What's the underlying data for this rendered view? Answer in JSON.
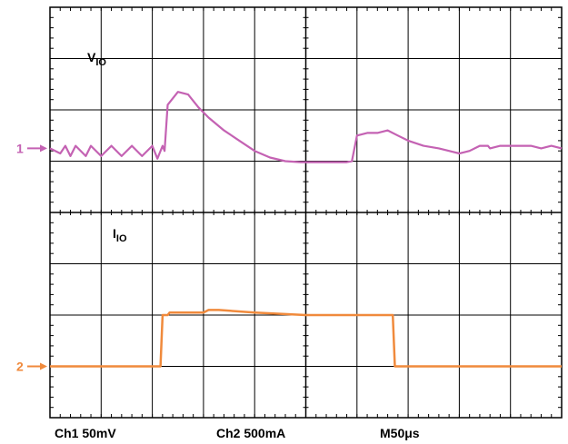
{
  "chart_data": {
    "type": "line",
    "grid": true,
    "divisions": {
      "x": 10,
      "y": 8
    },
    "x_range_us": [
      0,
      500
    ],
    "series": [
      {
        "name": "V",
        "name_sub": "IO",
        "channel_marker": "1",
        "color": "#c462b3",
        "ground_div": 5.25,
        "points": [
          [
            0,
            5.25
          ],
          [
            10,
            5.15
          ],
          [
            15,
            5.3
          ],
          [
            20,
            5.1
          ],
          [
            25,
            5.3
          ],
          [
            35,
            5.1
          ],
          [
            40,
            5.3
          ],
          [
            50,
            5.1
          ],
          [
            60,
            5.3
          ],
          [
            70,
            5.1
          ],
          [
            80,
            5.3
          ],
          [
            90,
            5.1
          ],
          [
            100,
            5.3
          ],
          [
            105,
            5.05
          ],
          [
            110,
            5.3
          ],
          [
            112,
            5.2
          ],
          [
            115,
            6.1
          ],
          [
            125,
            6.35
          ],
          [
            135,
            6.3
          ],
          [
            145,
            6.05
          ],
          [
            155,
            5.85
          ],
          [
            170,
            5.6
          ],
          [
            185,
            5.4
          ],
          [
            200,
            5.2
          ],
          [
            215,
            5.07
          ],
          [
            230,
            5.0
          ],
          [
            245,
            4.98
          ],
          [
            260,
            4.98
          ],
          [
            270,
            4.98
          ],
          [
            280,
            4.98
          ],
          [
            290,
            4.98
          ],
          [
            295,
            5.0
          ],
          [
            300,
            5.5
          ],
          [
            310,
            5.55
          ],
          [
            320,
            5.55
          ],
          [
            330,
            5.6
          ],
          [
            340,
            5.5
          ],
          [
            350,
            5.4
          ],
          [
            365,
            5.3
          ],
          [
            380,
            5.25
          ],
          [
            390,
            5.2
          ],
          [
            400,
            5.15
          ],
          [
            410,
            5.2
          ],
          [
            420,
            5.3
          ],
          [
            428,
            5.3
          ],
          [
            430,
            5.25
          ],
          [
            440,
            5.3
          ],
          [
            450,
            5.3
          ],
          [
            460,
            5.3
          ],
          [
            470,
            5.3
          ],
          [
            480,
            5.25
          ],
          [
            490,
            5.3
          ],
          [
            500,
            5.25
          ]
        ]
      },
      {
        "name": "I",
        "name_sub": "IO",
        "channel_marker": "2",
        "color": "#f08a3c",
        "ground_div": 1.0,
        "points": [
          [
            0,
            1.0
          ],
          [
            100,
            1.0
          ],
          [
            108,
            1.0
          ],
          [
            110,
            2.0
          ],
          [
            115,
            2.0
          ],
          [
            117,
            2.05
          ],
          [
            150,
            2.05
          ],
          [
            155,
            2.1
          ],
          [
            165,
            2.1
          ],
          [
            200,
            2.05
          ],
          [
            250,
            2.0
          ],
          [
            300,
            2.0
          ],
          [
            330,
            2.0
          ],
          [
            335,
            2.0
          ],
          [
            337,
            1.0
          ],
          [
            500,
            1.0
          ]
        ]
      }
    ],
    "scale_labels": {
      "ch1": "Ch1 50mV",
      "ch2": "Ch2 500mA",
      "time": "M50μs"
    }
  },
  "colors": {
    "background": "#ffffff",
    "grid": "#000000",
    "ch1": "#c462b3",
    "ch2": "#f08a3c"
  }
}
